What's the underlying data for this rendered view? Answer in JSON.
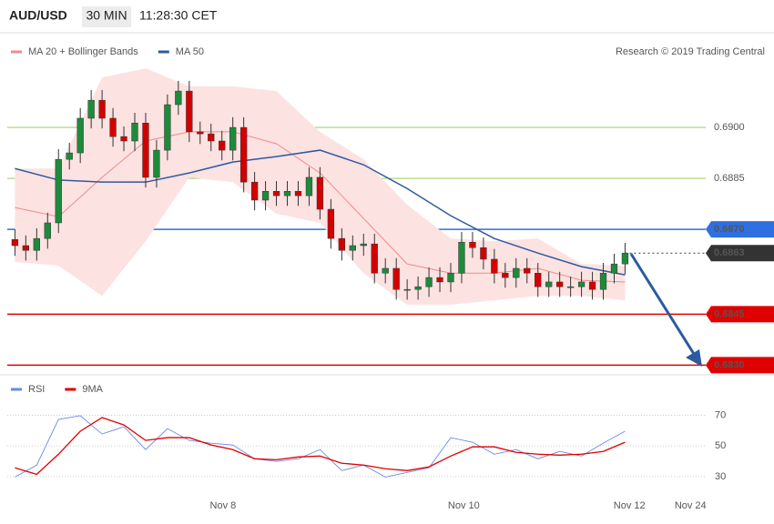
{
  "header": {
    "symbol": "AUD/USD",
    "interval": "30 MIN",
    "time": "11:28:30 CET"
  },
  "chart_data": [
    {
      "type": "candlestick",
      "credit": "Research © 2019 Trading Central",
      "xlim": [
        -0.7,
        63.4
      ],
      "ylim": [
        0.68277,
        0.69268
      ],
      "up_color": "#1e8a3c",
      "down_color": "#d40000",
      "x": [
        0,
        1,
        2,
        3,
        4,
        5,
        6,
        7,
        8,
        9,
        10,
        11,
        12,
        13,
        14,
        15,
        16,
        17,
        18,
        19,
        20,
        21,
        22,
        23,
        24,
        25,
        26,
        27,
        28,
        29,
        30,
        31,
        32,
        33,
        34,
        35,
        36,
        37,
        38,
        39,
        40,
        41,
        42,
        43,
        44,
        45,
        46,
        47,
        48,
        49,
        50,
        51,
        52,
        53,
        54,
        55,
        56
      ],
      "open": [
        0.6867,
        0.68652,
        0.68638,
        0.68673,
        0.68719,
        0.68906,
        0.68925,
        0.69027,
        0.6908,
        0.69027,
        0.68973,
        0.6896,
        0.69013,
        0.68853,
        0.68933,
        0.69067,
        0.69107,
        0.68987,
        0.68981,
        0.6896,
        0.68933,
        0.69,
        0.68839,
        0.68786,
        0.68812,
        0.68799,
        0.68812,
        0.68799,
        0.68853,
        0.68759,
        0.68673,
        0.68638,
        0.68652,
        0.68657,
        0.68571,
        0.68585,
        0.68523,
        0.68523,
        0.68531,
        0.68558,
        0.68545,
        0.68571,
        0.68662,
        0.68646,
        0.68612,
        0.68571,
        0.68558,
        0.68585,
        0.68571,
        0.68531,
        0.68545,
        0.68531,
        0.68531,
        0.68545,
        0.68523,
        0.68571,
        0.68598
      ],
      "high": [
        0.687,
        0.68682,
        0.68703,
        0.68749,
        0.68936,
        0.68955,
        0.69057,
        0.6911,
        0.6911,
        0.69057,
        0.69003,
        0.69043,
        0.69043,
        0.68963,
        0.69097,
        0.69137,
        0.69137,
        0.69017,
        0.69011,
        0.6899,
        0.6903,
        0.6903,
        0.68869,
        0.68842,
        0.68842,
        0.68842,
        0.68842,
        0.68883,
        0.68883,
        0.68789,
        0.68703,
        0.68682,
        0.68687,
        0.68687,
        0.68615,
        0.68615,
        0.68553,
        0.68561,
        0.68588,
        0.68588,
        0.68601,
        0.68692,
        0.68692,
        0.68676,
        0.68642,
        0.68601,
        0.68615,
        0.68615,
        0.68601,
        0.68575,
        0.68575,
        0.68561,
        0.68575,
        0.68575,
        0.68601,
        0.68628,
        0.6866
      ],
      "low": [
        0.68622,
        0.68608,
        0.68608,
        0.68643,
        0.68689,
        0.68876,
        0.68895,
        0.68997,
        0.68997,
        0.68943,
        0.6893,
        0.6893,
        0.68823,
        0.68823,
        0.68903,
        0.69037,
        0.68957,
        0.68951,
        0.6893,
        0.68903,
        0.68903,
        0.68809,
        0.68756,
        0.68756,
        0.68769,
        0.68769,
        0.68769,
        0.68769,
        0.68729,
        0.68643,
        0.68608,
        0.68608,
        0.68622,
        0.68541,
        0.68541,
        0.68493,
        0.68493,
        0.68493,
        0.68501,
        0.68515,
        0.68515,
        0.68541,
        0.68616,
        0.68582,
        0.68541,
        0.68528,
        0.68528,
        0.68541,
        0.68501,
        0.68501,
        0.68501,
        0.68501,
        0.68501,
        0.68493,
        0.68493,
        0.68541,
        0.68568
      ],
      "close": [
        0.68652,
        0.68638,
        0.68673,
        0.68719,
        0.68906,
        0.68925,
        0.69027,
        0.6908,
        0.69027,
        0.68973,
        0.6896,
        0.69013,
        0.68853,
        0.68933,
        0.69067,
        0.69107,
        0.68987,
        0.68981,
        0.6896,
        0.68933,
        0.69,
        0.68839,
        0.68786,
        0.68812,
        0.68799,
        0.68812,
        0.68799,
        0.68853,
        0.68759,
        0.68673,
        0.68638,
        0.68652,
        0.68657,
        0.68571,
        0.68585,
        0.68523,
        0.68523,
        0.68531,
        0.68558,
        0.68545,
        0.68571,
        0.68662,
        0.68646,
        0.68612,
        0.68571,
        0.68558,
        0.68585,
        0.68571,
        0.68531,
        0.68545,
        0.68531,
        0.68531,
        0.68545,
        0.68523,
        0.68571,
        0.68598,
        0.6863
      ],
      "series": [
        {
          "name": "MA 20 + Bollinger Bands",
          "color": "#f08a8a",
          "fill": "#fde2e2",
          "x": [
            0,
            4,
            8,
            12,
            16,
            20,
            24,
            28,
            32,
            36,
            40,
            44,
            48,
            52,
            56
          ],
          "values": [
            0.68764,
            0.68737,
            0.68853,
            0.6896,
            0.68987,
            0.68987,
            0.68952,
            0.68866,
            0.68732,
            0.68598,
            0.68571,
            0.68571,
            0.68585,
            0.6855,
            0.68545
          ],
          "upper": [
            0.68879,
            0.68879,
            0.69147,
            0.69174,
            0.69121,
            0.69121,
            0.69107,
            0.68987,
            0.68906,
            0.68772,
            0.68673,
            0.68665,
            0.68673,
            0.68598,
            0.68593
          ],
          "lower": [
            0.68604,
            0.68593,
            0.68504,
            0.68665,
            0.68853,
            0.68839,
            0.68746,
            0.68719,
            0.68571,
            0.68478,
            0.68478,
            0.68491,
            0.68504,
            0.68504,
            0.68491
          ]
        },
        {
          "name": "MA 50",
          "color": "#2c5aa0",
          "x": [
            0,
            4,
            8,
            12,
            16,
            20,
            24,
            28,
            32,
            36,
            40,
            44,
            48,
            52,
            56
          ],
          "values": [
            0.68879,
            0.68845,
            0.68839,
            0.68839,
            0.68866,
            0.68898,
            0.68914,
            0.68933,
            0.6889,
            0.6882,
            0.6874,
            0.68673,
            0.6863,
            0.6859,
            0.68566
          ]
        }
      ],
      "levels": [
        {
          "value": 0.69,
          "label": "0.6900",
          "color": "#8dc63f",
          "style": "grid"
        },
        {
          "value": 0.6885,
          "label": "0.6885",
          "color": "#8dc63f",
          "style": "grid"
        },
        {
          "value": 0.687,
          "label": "0.6870",
          "color": "#2f6fe0",
          "style": "box"
        },
        {
          "value": 0.6863,
          "label": "0.6863",
          "color": "#333333",
          "style": "dotted-box"
        },
        {
          "value": 0.6845,
          "label": "0.6845",
          "color": "#e00000",
          "style": "box"
        },
        {
          "value": 0.683,
          "label": "0.6830",
          "color": "#e00000",
          "style": "box"
        }
      ]
    },
    {
      "type": "line",
      "xlim": [
        -0.7,
        63.4
      ],
      "ylim": [
        5,
        78
      ],
      "yticks": [
        30,
        50,
        70
      ],
      "xticks": [
        {
          "value": 19.1,
          "label": "Nov 8"
        },
        {
          "value": 41.2,
          "label": "Nov 10"
        },
        {
          "value": 56.4,
          "label": "Nov 12"
        },
        {
          "value": 62,
          "label": "Nov 24"
        }
      ],
      "series": [
        {
          "name": "RSI",
          "color": "#6a88e6",
          "x": [
            0,
            2,
            4,
            6,
            8,
            10,
            12,
            14,
            16,
            18,
            20,
            22,
            24,
            26,
            28,
            30,
            32,
            34,
            36,
            38,
            40,
            42,
            44,
            46,
            48,
            50,
            52,
            54,
            56
          ],
          "values": [
            29.7,
            37.5,
            67.3,
            69.7,
            57.8,
            62.5,
            47.6,
            61.3,
            53.6,
            51.8,
            50.6,
            41.6,
            39.9,
            41.6,
            47.6,
            33.9,
            37.5,
            29.7,
            32.7,
            35.7,
            55.4,
            52.4,
            44.6,
            47.6,
            41.6,
            46.4,
            43.4,
            51.8,
            59.6
          ]
        },
        {
          "name": "9MA",
          "color": "#e00000",
          "x": [
            0,
            2,
            4,
            6,
            8,
            10,
            12,
            14,
            16,
            18,
            20,
            22,
            24,
            26,
            28,
            30,
            32,
            34,
            36,
            38,
            40,
            42,
            44,
            46,
            48,
            50,
            52,
            54,
            56
          ],
          "values": [
            35.7,
            31.5,
            44.6,
            59.6,
            68.5,
            63.7,
            53.6,
            55.4,
            55.4,
            50.6,
            47.6,
            41.6,
            41,
            42.8,
            43.4,
            38.7,
            37.5,
            35.1,
            33.9,
            36.3,
            43.4,
            49.4,
            49.4,
            45.8,
            44.6,
            44,
            44.6,
            46.4,
            52.4
          ]
        }
      ]
    }
  ]
}
